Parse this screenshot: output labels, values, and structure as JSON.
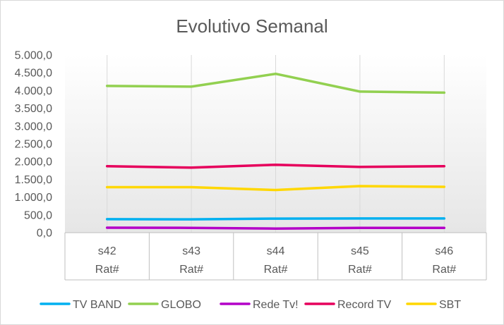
{
  "chart_data": {
    "type": "line",
    "title": "Evolutivo  Semanal",
    "categories": [
      "s42",
      "s43",
      "s44",
      "s45",
      "s46"
    ],
    "category_sublabel": "Rat#",
    "y_ticks": [
      "5.000,0",
      "4.500,0",
      "4.000,0",
      "3.500,0",
      "3.000,0",
      "2.500,0",
      "2.000,0",
      "1.500,0",
      "1.000,0",
      "500,0",
      "0,0"
    ],
    "ylim": [
      0,
      5000
    ],
    "grid": "vertical",
    "legend_position": "bottom",
    "series": [
      {
        "name": "TV BAND",
        "color": "#00B0F0",
        "values": [
          380,
          375,
          395,
          400,
          400
        ]
      },
      {
        "name": "GLOBO",
        "color": "#92D050",
        "values": [
          4130,
          4110,
          4470,
          3970,
          3940
        ]
      },
      {
        "name": "Rede Tv!",
        "color": "#B400C8",
        "values": [
          140,
          135,
          115,
          135,
          135
        ]
      },
      {
        "name": "Record TV",
        "color": "#E6005C",
        "values": [
          1870,
          1830,
          1910,
          1850,
          1870
        ]
      },
      {
        "name": "SBT",
        "color": "#FFD700",
        "values": [
          1280,
          1280,
          1200,
          1310,
          1290
        ]
      }
    ]
  }
}
